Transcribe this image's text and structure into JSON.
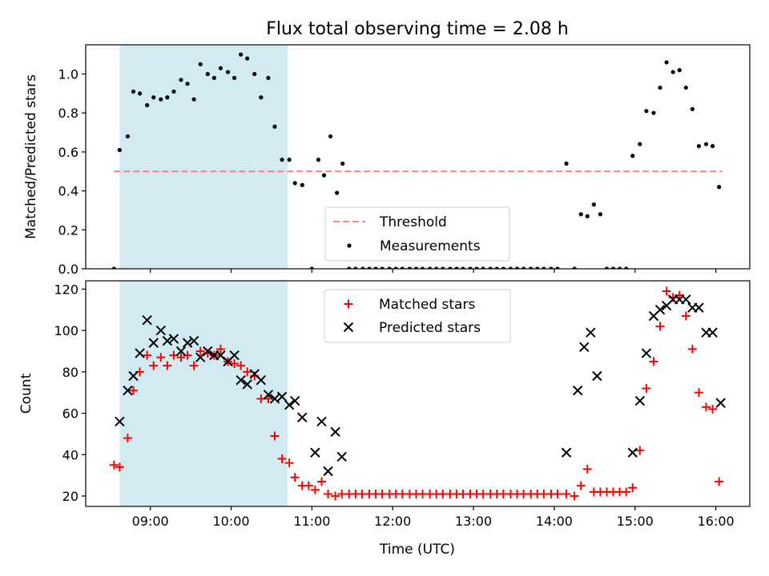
{
  "figure": {
    "title": "Flux total observing time = 2.08 h",
    "xlabel": "Time (UTC)",
    "xticks": [
      "09:00",
      "10:00",
      "11:00",
      "12:00",
      "13:00",
      "14:00",
      "15:00",
      "16:00"
    ],
    "colors": {
      "threshold": "#ff7f7f",
      "measurements": "#000000",
      "matched": "#ff0000",
      "predicted": "#000000",
      "shade": "#add8e6"
    }
  },
  "chart_data": [
    {
      "type": "scatter",
      "x_unit": "hours UTC",
      "ylabel": "Matched/Predicted stars",
      "xlim": [
        8.2,
        16.42
      ],
      "ylim": [
        0,
        1.15
      ],
      "yticks": [
        "0.0",
        "0.2",
        "0.4",
        "0.6",
        "0.8",
        "1.0"
      ],
      "shaded_region": [
        8.62,
        10.7
      ],
      "threshold": {
        "name": "Threshold",
        "y": 0.5,
        "x": [
          8.55,
          16.08
        ]
      },
      "series": [
        {
          "name": "Measurements",
          "x": [
            8.55,
            8.62,
            8.72,
            8.79,
            8.87,
            8.96,
            9.04,
            9.13,
            9.21,
            9.29,
            9.38,
            9.46,
            9.54,
            9.62,
            9.71,
            9.79,
            9.87,
            9.96,
            10.04,
            10.12,
            10.2,
            10.29,
            10.37,
            10.46,
            10.54,
            10.63,
            10.72,
            10.79,
            10.88,
            11.0,
            11.08,
            11.15,
            11.23,
            11.31,
            11.38,
            11.46,
            11.54,
            11.63,
            11.71,
            11.79,
            11.87,
            11.96,
            12.04,
            12.12,
            12.21,
            12.29,
            12.37,
            12.46,
            12.54,
            12.62,
            12.71,
            12.79,
            12.87,
            12.96,
            13.04,
            13.12,
            13.21,
            13.29,
            13.37,
            13.46,
            13.54,
            13.62,
            13.71,
            13.79,
            13.87,
            13.96,
            14.04,
            14.15,
            14.25,
            14.33,
            14.41,
            14.49,
            14.57,
            14.65,
            14.73,
            14.81,
            14.89,
            14.97,
            15.06,
            15.14,
            15.23,
            15.31,
            15.39,
            15.47,
            15.55,
            15.63,
            15.71,
            15.79,
            15.88,
            15.96,
            16.04
          ],
          "y": [
            0.0,
            0.61,
            0.68,
            0.91,
            0.9,
            0.84,
            0.88,
            0.87,
            0.88,
            0.91,
            0.97,
            0.95,
            0.87,
            1.05,
            1.0,
            0.98,
            1.03,
            1.01,
            0.98,
            1.1,
            1.08,
            1.0,
            0.88,
            0.98,
            0.73,
            0.56,
            0.56,
            0.44,
            0.43,
            0.0,
            0.56,
            0.48,
            0.68,
            0.39,
            0.54,
            0.0,
            0.0,
            0.0,
            0.0,
            0.0,
            0.0,
            0.0,
            0.0,
            0.0,
            0.0,
            0.0,
            0.0,
            0.0,
            0.0,
            0.0,
            0.0,
            0.0,
            0.0,
            0.0,
            0.0,
            0.0,
            0.0,
            0.0,
            0.0,
            0.0,
            0.0,
            0.0,
            0.0,
            0.0,
            0.0,
            0.0,
            0.0,
            0.54,
            0.0,
            0.28,
            0.27,
            0.33,
            0.28,
            0.0,
            0.0,
            0.0,
            0.0,
            0.58,
            0.64,
            0.81,
            0.8,
            0.93,
            1.06,
            1.01,
            1.02,
            0.93,
            0.82,
            0.63,
            0.64,
            0.63,
            0.42
          ]
        }
      ],
      "legend": [
        "Threshold",
        "Measurements"
      ],
      "legend_location": "lower center"
    },
    {
      "type": "scatter",
      "x_unit": "hours UTC",
      "ylabel": "Count",
      "xlim": [
        8.2,
        16.42
      ],
      "ylim": [
        15,
        124
      ],
      "yticks": [
        "20",
        "40",
        "60",
        "80",
        "100",
        "120"
      ],
      "shaded_region": [
        8.62,
        10.7
      ],
      "series": [
        {
          "name": "Matched stars",
          "marker": "plus",
          "x": [
            8.55,
            8.62,
            8.72,
            8.79,
            8.87,
            8.96,
            9.04,
            9.13,
            9.21,
            9.29,
            9.38,
            9.46,
            9.54,
            9.62,
            9.71,
            9.79,
            9.87,
            9.96,
            10.04,
            10.12,
            10.2,
            10.29,
            10.37,
            10.46,
            10.54,
            10.63,
            10.72,
            10.79,
            10.88,
            10.96,
            11.04,
            11.12,
            11.2,
            11.29,
            11.37,
            11.46,
            11.54,
            11.62,
            11.71,
            11.79,
            11.87,
            11.96,
            12.04,
            12.12,
            12.21,
            12.29,
            12.37,
            12.46,
            12.54,
            12.62,
            12.71,
            12.79,
            12.87,
            12.96,
            13.04,
            13.12,
            13.21,
            13.29,
            13.37,
            13.46,
            13.54,
            13.62,
            13.71,
            13.79,
            13.87,
            13.96,
            14.04,
            14.15,
            14.25,
            14.33,
            14.41,
            14.49,
            14.57,
            14.65,
            14.73,
            14.81,
            14.89,
            14.97,
            15.06,
            15.14,
            15.23,
            15.31,
            15.39,
            15.47,
            15.55,
            15.63,
            15.71,
            15.79,
            15.88,
            15.96,
            16.04
          ],
          "y": [
            35,
            34,
            48,
            71,
            80,
            88,
            83,
            87,
            83,
            88,
            87,
            88,
            83,
            90,
            89,
            88,
            91,
            85,
            84,
            83,
            80,
            78,
            67,
            67,
            49,
            38,
            36,
            29,
            25,
            25,
            23,
            27,
            21,
            20,
            21,
            21,
            21,
            21,
            21,
            21,
            21,
            21,
            21,
            21,
            21,
            21,
            21,
            21,
            21,
            21,
            21,
            21,
            21,
            21,
            21,
            21,
            21,
            21,
            21,
            21,
            21,
            21,
            21,
            21,
            21,
            21,
            21,
            21,
            20,
            25,
            33,
            22,
            22,
            22,
            22,
            22,
            22,
            24,
            42,
            72,
            85,
            102,
            119,
            116,
            117,
            107,
            91,
            70,
            63,
            62,
            27
          ]
        },
        {
          "name": "Predicted stars",
          "marker": "x",
          "x": [
            8.62,
            8.72,
            8.79,
            8.87,
            8.96,
            9.04,
            9.13,
            9.21,
            9.29,
            9.38,
            9.46,
            9.54,
            9.62,
            9.71,
            9.79,
            9.87,
            9.96,
            10.04,
            10.12,
            10.2,
            10.29,
            10.37,
            10.46,
            10.54,
            10.63,
            10.72,
            10.79,
            10.88,
            11.04,
            11.12,
            11.2,
            11.29,
            11.37,
            14.15,
            14.29,
            14.37,
            14.45,
            14.53,
            14.97,
            15.06,
            15.14,
            15.23,
            15.31,
            15.39,
            15.47,
            15.55,
            15.63,
            15.71,
            15.79,
            15.88,
            15.96,
            16.06
          ],
          "y": [
            56,
            71,
            78,
            89,
            105,
            94,
            100,
            95,
            96,
            90,
            94,
            95,
            87,
            90,
            88,
            88,
            85,
            88,
            76,
            74,
            79,
            76,
            69,
            67,
            68,
            64,
            66,
            58,
            41,
            56,
            32,
            51,
            39,
            41,
            71,
            92,
            99,
            78,
            41,
            66,
            89,
            107,
            110,
            112,
            115,
            115,
            115,
            111,
            111,
            99,
            99,
            65
          ]
        }
      ],
      "legend": [
        "Matched stars",
        "Predicted stars"
      ],
      "legend_location": "upper center"
    }
  ]
}
